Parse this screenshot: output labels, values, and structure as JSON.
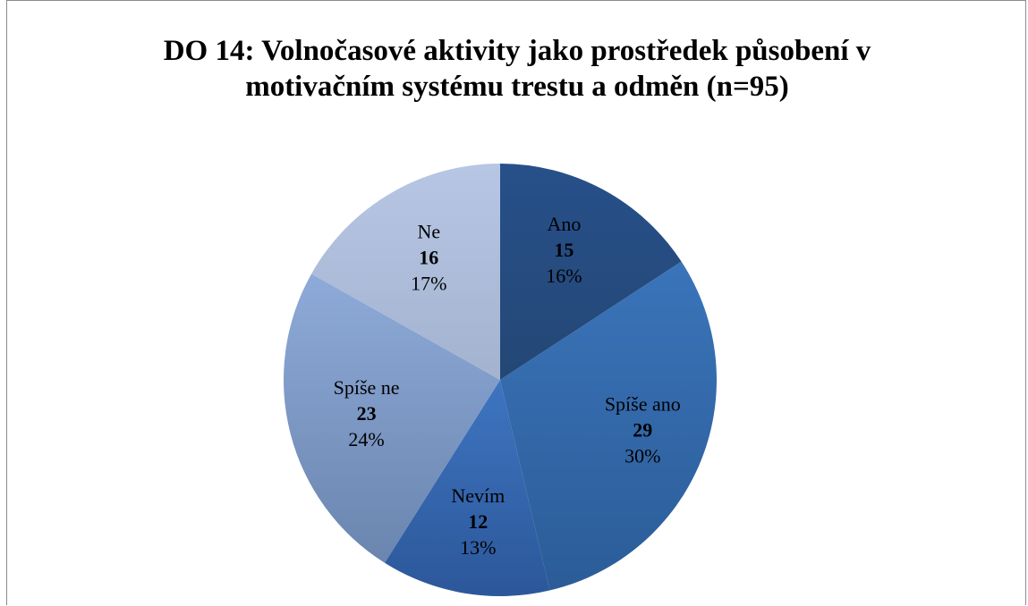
{
  "chart_data": {
    "type": "pie",
    "title_lines": [
      "DO 14: Volnočasové aktivity jako prostředek působení v",
      "motivačním systému trestu a odměn (n=95)"
    ],
    "categories": [
      "Ano",
      "Spíše ano",
      "Nevím",
      "Spíše ne",
      "Ne"
    ],
    "values": [
      15,
      29,
      12,
      23,
      16
    ],
    "percent_labels": [
      "16%",
      "30%",
      "13%",
      "24%",
      "17%"
    ],
    "colors": [
      [
        "#27508a",
        "#244775"
      ],
      [
        "#3a74b9",
        "#2b5c98"
      ],
      [
        "#3e75c0",
        "#2c579a"
      ],
      [
        "#8eaad8",
        "#6a85ae"
      ],
      [
        "#b6c6e4",
        "#a3b3cf"
      ]
    ],
    "start_angle_deg": 0,
    "direction": "clockwise",
    "legend": "none",
    "data_labels": "inside"
  }
}
